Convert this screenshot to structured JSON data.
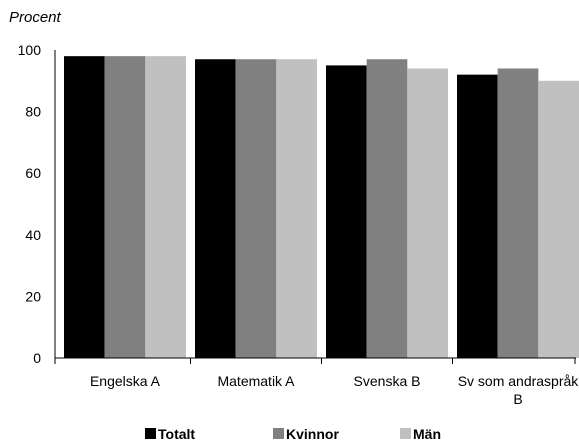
{
  "chart_data": {
    "type": "bar",
    "ylabel": "Procent",
    "ylim": [
      0,
      100
    ],
    "yticks": [
      0,
      20,
      40,
      60,
      80,
      100
    ],
    "grid": false,
    "legend_position": "bottom",
    "categories": [
      [
        "Engelska A"
      ],
      [
        "Matematik A"
      ],
      [
        "Svenska B"
      ],
      [
        "Sv som andraspråk",
        "B"
      ]
    ],
    "series": [
      {
        "name": "Totalt",
        "color": "#000000",
        "values": [
          98,
          97,
          95,
          92
        ]
      },
      {
        "name": "Kvinnor",
        "color": "#808080",
        "values": [
          98,
          97,
          97,
          94
        ]
      },
      {
        "name": "Män",
        "color": "#c0c0c0",
        "values": [
          98,
          97,
          94,
          90
        ]
      }
    ]
  }
}
